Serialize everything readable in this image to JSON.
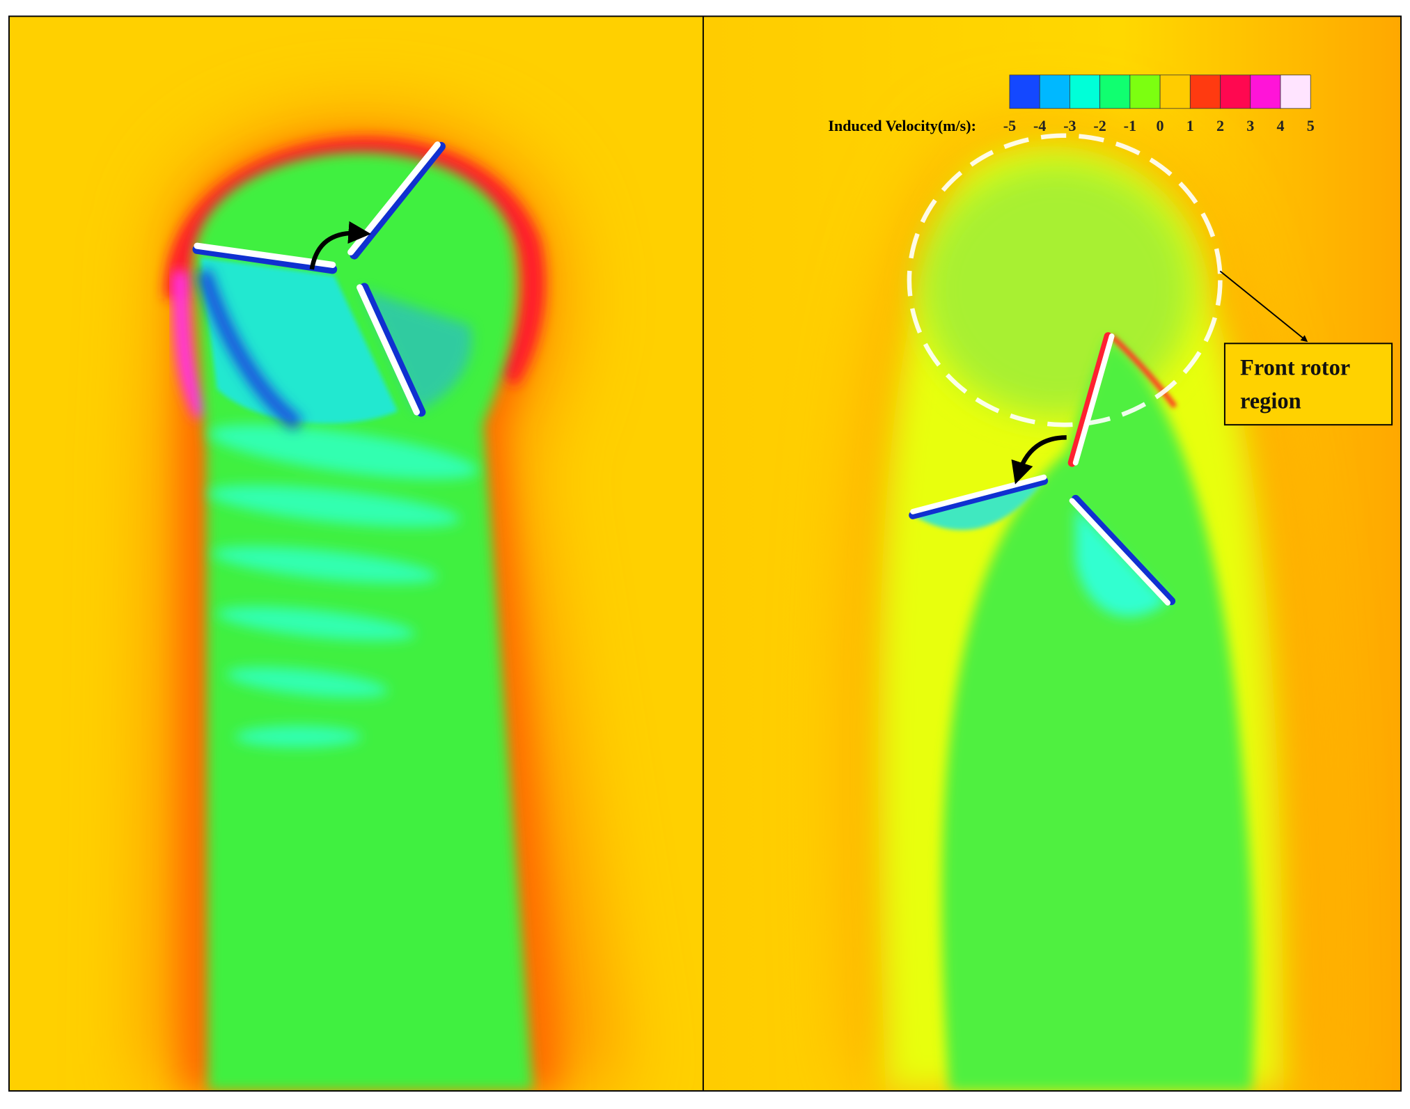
{
  "colorbar": {
    "label": "Induced Velocity(m/s):",
    "ticks": [
      -5,
      -4,
      -3,
      -2,
      -1,
      0,
      1,
      2,
      3,
      4,
      5
    ],
    "colors": [
      "#1448ff",
      "#00b8ff",
      "#00ffd8",
      "#10ff70",
      "#7cff10",
      "#ffcc00",
      "#ff3a10",
      "#ff0850",
      "#ff14d8",
      "#ffe4ff"
    ]
  },
  "annotation": {
    "lines": [
      "Front rotor",
      "region"
    ]
  }
}
